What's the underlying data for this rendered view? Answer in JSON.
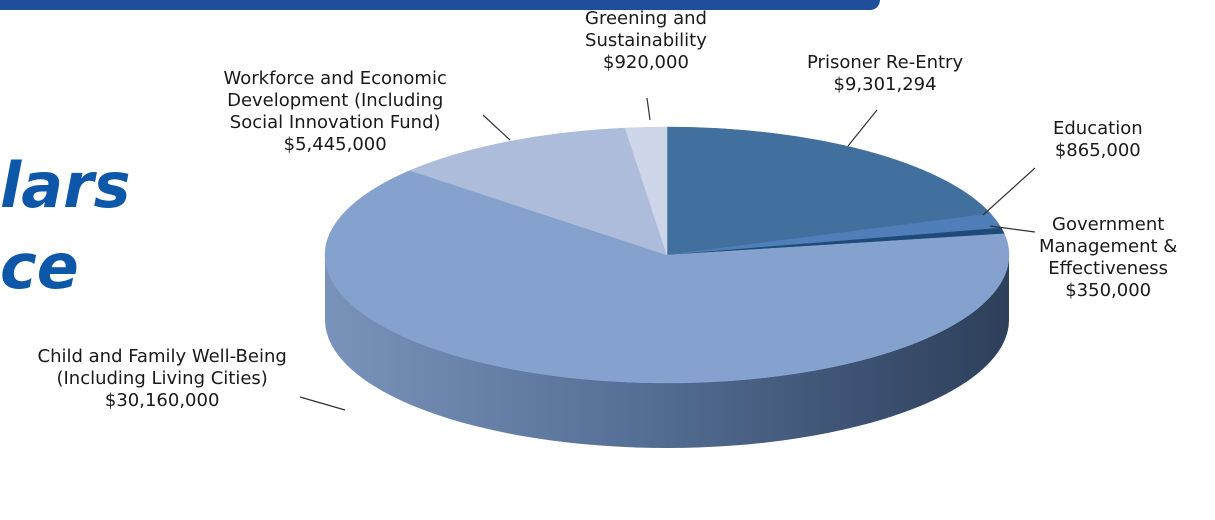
{
  "heading": {
    "line1": "lars",
    "line2": "ce"
  },
  "colors": {
    "bar": "#1f4f9a",
    "heading": "#0d57a9",
    "child_family": "#84a2cd",
    "workforce": "#acbcda",
    "greening": "#cdd6e8",
    "prisoner": "#41709e",
    "education": "#4f7eb8",
    "government": "#1e4a78"
  },
  "chart_data": {
    "type": "pie",
    "title": "",
    "style": "3d",
    "slices": [
      {
        "id": "prisoner",
        "label_lines": [
          "Prisoner Re-Entry"
        ],
        "value_text": "$9,301,294",
        "value": 9301294
      },
      {
        "id": "education",
        "label_lines": [
          "Education"
        ],
        "value_text": "$865,000",
        "value": 865000
      },
      {
        "id": "government",
        "label_lines": [
          "Government",
          "Management &",
          "Effectiveness"
        ],
        "value_text": "$350,000",
        "value": 350000
      },
      {
        "id": "child_family",
        "label_lines": [
          "Child and Family Well-Being",
          "(Including Living Cities)"
        ],
        "value_text": "$30,160,000",
        "value": 30160000
      },
      {
        "id": "workforce",
        "label_lines": [
          "Workforce and Economic",
          "Development (Including",
          "Social Innovation Fund)"
        ],
        "value_text": "$5,445,000",
        "value": 5445000
      },
      {
        "id": "greening",
        "label_lines": [
          "Greening and",
          "Sustainability"
        ],
        "value_text": "$920,000",
        "value": 920000
      }
    ]
  }
}
